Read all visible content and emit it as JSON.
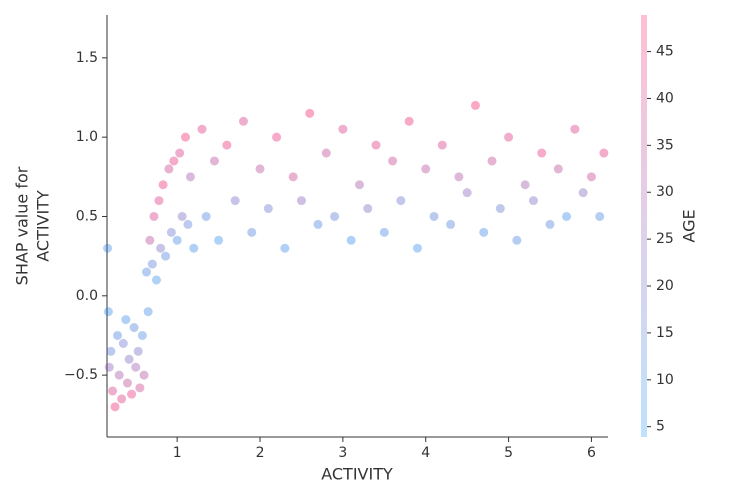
{
  "chart_data": {
    "type": "scatter",
    "xlabel": "ACTIVITY",
    "ylabel": [
      "SHAP value for",
      "ACTIVITY"
    ],
    "colorbar_label": "AGE",
    "xlim": [
      0.153,
      6.2
    ],
    "xticks": [
      1,
      2,
      3,
      4,
      5,
      6
    ],
    "ylim": [
      -0.89,
      1.77
    ],
    "yticks": [
      {
        "value": -0.5,
        "label": "−0.5"
      },
      {
        "value": 0,
        "label": "0.0"
      },
      0.5,
      {
        "value": 1,
        "label": "1.0"
      },
      1.5
    ],
    "clim": [
      3.9,
      48.9
    ],
    "cticks": [
      5,
      10,
      15,
      20,
      25,
      30,
      35,
      40,
      45
    ],
    "colormap": [
      "#008afa",
      "#ff0052"
    ],
    "x": [
      0.16,
      0.17,
      0.2,
      0.22,
      0.25,
      0.28,
      0.3,
      0.33,
      0.35,
      0.38,
      0.4,
      0.42,
      0.45,
      0.48,
      0.5,
      0.53,
      0.55,
      0.58,
      0.6,
      0.18,
      0.63,
      0.65,
      0.67,
      0.7,
      0.72,
      0.75,
      0.78,
      0.8,
      0.83,
      0.86,
      0.9,
      0.93,
      0.96,
      1.0,
      1.03,
      1.06,
      1.1,
      1.13,
      1.16,
      1.2,
      1.3,
      1.35,
      1.45,
      1.5,
      1.6,
      1.7,
      1.8,
      1.9,
      2.0,
      2.1,
      2.2,
      2.3,
      2.4,
      2.5,
      2.6,
      2.7,
      2.8,
      2.9,
      3.0,
      3.1,
      3.2,
      3.3,
      3.4,
      3.5,
      3.6,
      3.7,
      3.8,
      3.9,
      4.0,
      4.1,
      4.2,
      4.3,
      4.4,
      4.5,
      4.6,
      4.7,
      4.8,
      4.9,
      5.0,
      5.1,
      5.2,
      5.3,
      5.4,
      5.5,
      5.6,
      5.7,
      5.8,
      5.9,
      6.0,
      6.1,
      6.15
    ],
    "values": [
      0.3,
      -0.1,
      -0.35,
      -0.6,
      -0.7,
      -0.25,
      -0.5,
      -0.65,
      -0.3,
      -0.15,
      -0.55,
      -0.4,
      -0.62,
      -0.2,
      -0.45,
      -0.35,
      -0.58,
      -0.25,
      -0.5,
      -0.45,
      0.15,
      -0.1,
      0.35,
      0.2,
      0.5,
      0.1,
      0.6,
      0.3,
      0.7,
      0.25,
      0.8,
      0.4,
      0.85,
      0.35,
      0.9,
      0.5,
      1.0,
      0.45,
      0.75,
      0.3,
      1.05,
      0.5,
      0.85,
      0.35,
      0.95,
      0.6,
      1.1,
      0.4,
      0.8,
      0.55,
      1.0,
      0.3,
      0.75,
      0.6,
      1.15,
      0.45,
      0.9,
      0.5,
      1.05,
      0.35,
      0.7,
      0.55,
      0.95,
      0.4,
      0.85,
      0.6,
      1.1,
      0.3,
      0.8,
      0.5,
      0.95,
      0.45,
      0.75,
      0.65,
      1.2,
      0.4,
      0.85,
      0.55,
      1.0,
      0.35,
      0.7,
      0.6,
      0.9,
      0.45,
      0.8,
      0.5,
      1.05,
      0.65,
      0.75,
      0.5,
      0.9
    ],
    "color_values": [
      10,
      8,
      15,
      40,
      45,
      12,
      30,
      42,
      18,
      9,
      35,
      22,
      44,
      14,
      28,
      20,
      38,
      11,
      33,
      25,
      12,
      10,
      35,
      15,
      40,
      8,
      42,
      20,
      45,
      13,
      38,
      18,
      44,
      10,
      40,
      22,
      46,
      15,
      30,
      9,
      42,
      12,
      35,
      8,
      45,
      20,
      40,
      14,
      33,
      18,
      44,
      10,
      38,
      25,
      46,
      12,
      36,
      16,
      41,
      9,
      30,
      22,
      43,
      11,
      37,
      19,
      45,
      8,
      34,
      15,
      40,
      13,
      32,
      24,
      47,
      10,
      36,
      17,
      42,
      12,
      29,
      21,
      44,
      14,
      35,
      9,
      41,
      23,
      38,
      11,
      43
    ]
  }
}
